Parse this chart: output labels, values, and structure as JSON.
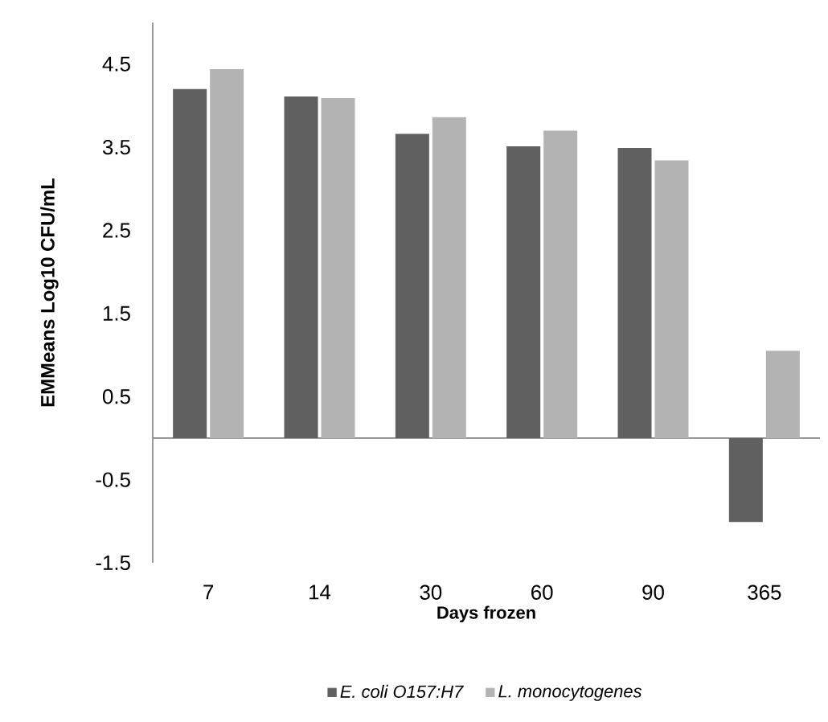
{
  "chart_data": {
    "type": "bar",
    "xlabel": "Days frozen",
    "ylabel": "EMMeans Log10 CFU/mL",
    "categories": [
      "7",
      "14",
      "30",
      "60",
      "90",
      "365"
    ],
    "series": [
      {
        "name": "E. coli O157:H7",
        "color": "#606060",
        "values": [
          4.2,
          4.11,
          3.66,
          3.51,
          3.49,
          -1.01
        ]
      },
      {
        "name": "L. monocytogenes",
        "color": "#b3b3b3",
        "values": [
          4.44,
          4.09,
          3.86,
          3.7,
          3.34,
          1.05
        ]
      }
    ],
    "ylim": [
      -1.5,
      5
    ],
    "yticks": [
      -1.5,
      -0.5,
      0.5,
      1.5,
      2.5,
      3.5,
      4.5
    ],
    "grid": false,
    "legend": "bottom"
  }
}
